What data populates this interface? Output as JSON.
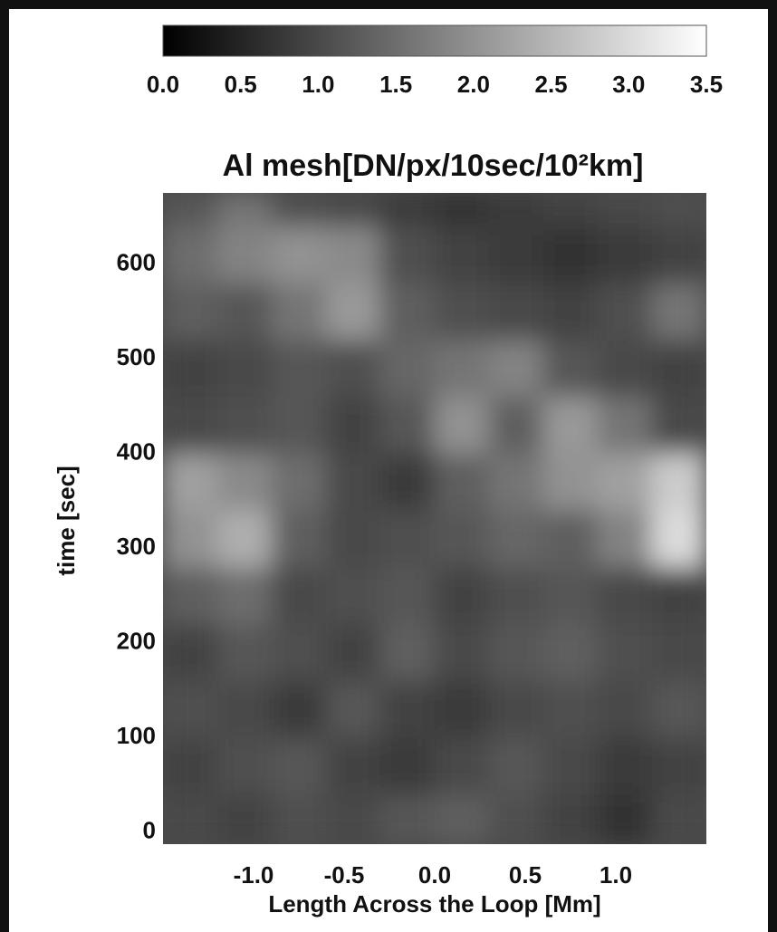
{
  "chart_data": {
    "type": "heatmap",
    "title": "Al mesh[DN/px/10sec/10²km]",
    "xlabel": "Length Across the Loop [Mm]",
    "ylabel": "time [sec]",
    "xlim": [
      -1.5,
      1.5
    ],
    "ylim": [
      -13,
      675
    ],
    "xticks": [
      {
        "value": -1.0,
        "label": "-1.0"
      },
      -0.5,
      {
        "value": 0.0,
        "label": "0.0"
      },
      0.5,
      {
        "value": 1.0,
        "label": "1.0"
      }
    ],
    "yticks": [
      0,
      100,
      200,
      300,
      400,
      500,
      600
    ],
    "zlim": [
      0,
      3.5
    ],
    "zticks": [
      {
        "value": 0,
        "label": "0.0"
      },
      0.5,
      {
        "value": 1,
        "label": "1.0"
      },
      1.5,
      {
        "value": 2,
        "label": "2.0"
      },
      2.5,
      {
        "value": 3,
        "label": "3.0"
      },
      3.5
    ],
    "x_edges": [
      -1.5,
      -1.2,
      -0.9,
      -0.6,
      -0.3,
      0,
      0.3,
      0.6,
      0.9,
      1.2,
      1.5
    ],
    "y_edges": [
      -13,
      40,
      100,
      160,
      220,
      280,
      340,
      400,
      460,
      520,
      580,
      640,
      675
    ],
    "values": [
      [
        1.0,
        0.9,
        1.1,
        1.0,
        1.2,
        1.3,
        1.1,
        0.9,
        0.7,
        1.0
      ],
      [
        0.9,
        1.1,
        1.2,
        0.9,
        0.8,
        1.0,
        1.2,
        1.0,
        0.8,
        0.9
      ],
      [
        1.1,
        1.0,
        0.8,
        1.2,
        0.9,
        0.8,
        1.0,
        1.1,
        1.0,
        1.2
      ],
      [
        0.9,
        1.2,
        1.1,
        0.9,
        1.3,
        1.0,
        1.2,
        1.3,
        1.1,
        1.0
      ],
      [
        1.3,
        1.5,
        1.0,
        1.1,
        1.2,
        0.9,
        1.1,
        1.2,
        1.0,
        0.9
      ],
      [
        2.0,
        2.4,
        1.3,
        1.0,
        1.1,
        1.2,
        1.4,
        1.3,
        1.8,
        3.0
      ],
      [
        2.2,
        1.9,
        1.5,
        1.0,
        0.8,
        1.3,
        1.6,
        2.0,
        2.2,
        2.8
      ],
      [
        1.0,
        1.1,
        1.2,
        0.9,
        1.2,
        2.0,
        1.3,
        2.1,
        1.6,
        1.0
      ],
      [
        0.9,
        1.0,
        1.2,
        1.1,
        1.4,
        1.6,
        1.8,
        1.2,
        1.0,
        0.9
      ],
      [
        1.3,
        1.2,
        1.6,
        2.1,
        1.3,
        1.1,
        1.0,
        0.9,
        1.1,
        1.6
      ],
      [
        1.5,
        1.8,
        2.0,
        1.9,
        1.1,
        0.9,
        0.8,
        0.7,
        0.8,
        0.9
      ],
      [
        1.2,
        1.6,
        1.1,
        1.0,
        0.8,
        0.7,
        0.8,
        0.9,
        1.0,
        1.1
      ]
    ]
  }
}
